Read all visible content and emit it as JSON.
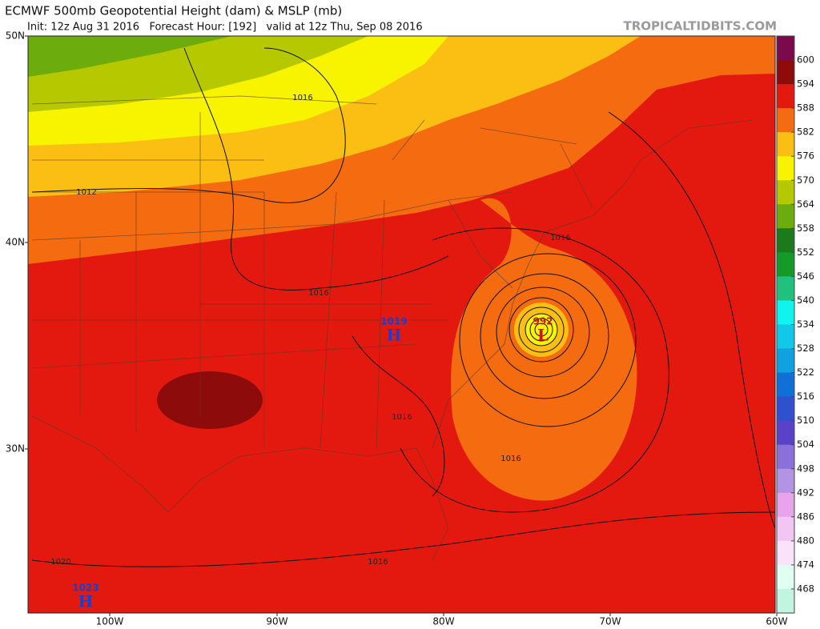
{
  "header": {
    "title": "ECMWF 500mb Geopotential Height (dam) & MSLP (mb)",
    "subtitle": "Init: 12z Aug 31 2016   Forecast Hour: [192]   valid at 12z Thu, Sep 08 2016",
    "site": "TROPICALTIDBITS.COM"
  },
  "map": {
    "lat_labels": [
      "50N",
      "40N",
      "30N"
    ],
    "lon_labels": [
      "100W",
      "90W",
      "80W",
      "70W",
      "60W"
    ],
    "contour_labels": [
      "1016",
      "1012",
      "1016",
      "1016",
      "1016",
      "1016",
      "1016",
      "1020"
    ],
    "pressure_centers": [
      {
        "value": "1019",
        "letter": "H"
      },
      {
        "value": "992",
        "letter": "L"
      },
      {
        "value": "1023",
        "letter": "H"
      }
    ]
  },
  "colorbar": {
    "lim": [
      462,
      606
    ],
    "ticks": [
      600,
      594,
      588,
      582,
      576,
      570,
      564,
      558,
      552,
      546,
      540,
      534,
      528,
      522,
      516,
      510,
      504,
      498,
      492,
      486,
      480,
      474,
      468
    ],
    "colors": [
      "#7a0a4c",
      "#8e0b0b",
      "#e3190f",
      "#f46b10",
      "#fbbf14",
      "#f8f400",
      "#b5c800",
      "#6cac0c",
      "#1b7a1b",
      "#159a2a",
      "#22c07e",
      "#10f4f0",
      "#12c8e8",
      "#10a2e0",
      "#1070d8",
      "#3050d0",
      "#5a42c8",
      "#8a70d8",
      "#b294e2",
      "#e8a4ea",
      "#f2c6f2",
      "#fae2fa",
      "#e0fff0",
      "#c2f5e0"
    ]
  }
}
